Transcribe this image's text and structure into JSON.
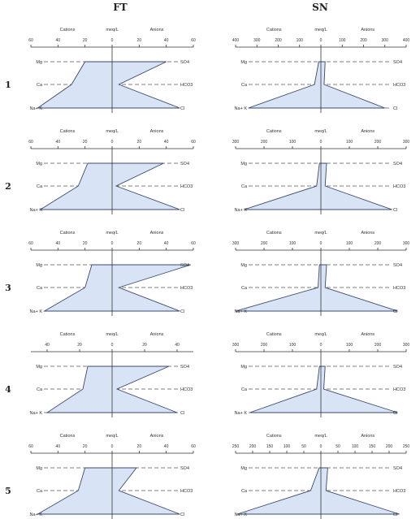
{
  "columns": [
    "FT",
    "SN"
  ],
  "ion_labels": {
    "left": [
      "Mg",
      "Ca",
      "Na+ K"
    ],
    "right": [
      "SO4",
      "HCO3",
      "Cl"
    ]
  },
  "axis_headers": [
    "Cations",
    "meq/L",
    "Anions"
  ],
  "chart_data": [
    {
      "type": "stiff",
      "column": "FT",
      "row_label": "1",
      "ticks": [
        60,
        40,
        20,
        0,
        20,
        40,
        60
      ],
      "xlim": [
        -60,
        60
      ],
      "cations": {
        "Mg": 20,
        "Ca": 30,
        "Na+K": 55
      },
      "anions": {
        "SO4": 40,
        "HCO3": 5,
        "Cl": 50
      }
    },
    {
      "type": "stiff",
      "column": "SN",
      "row_label": "1",
      "ticks": [
        400,
        300,
        200,
        100,
        0,
        100,
        200,
        300,
        400
      ],
      "xlim": [
        -400,
        400
      ],
      "cations": {
        "Mg": 10,
        "Ca": 30,
        "Na+K": 340
      },
      "anions": {
        "SO4": 20,
        "HCO3": 15,
        "Cl": 300
      }
    },
    {
      "type": "stiff",
      "column": "FT",
      "row_label": "2",
      "ticks": [
        60,
        40,
        20,
        0,
        20,
        40,
        60
      ],
      "xlim": [
        -60,
        60
      ],
      "cations": {
        "Mg": 18,
        "Ca": 25,
        "Na+K": 53
      },
      "anions": {
        "SO4": 38,
        "HCO3": 3,
        "Cl": 50
      }
    },
    {
      "type": "stiff",
      "column": "SN",
      "row_label": "2",
      "ticks": [
        300,
        200,
        100,
        0,
        100,
        200,
        300
      ],
      "xlim": [
        -300,
        300
      ],
      "cations": {
        "Mg": 5,
        "Ca": 15,
        "Na+K": 270
      },
      "anions": {
        "SO4": 20,
        "HCO3": 15,
        "Cl": 250
      }
    },
    {
      "type": "stiff",
      "column": "FT",
      "row_label": "3",
      "ticks": [
        60,
        40,
        20,
        0,
        20,
        40,
        60
      ],
      "xlim": [
        -60,
        60
      ],
      "cations": {
        "Mg": 15,
        "Ca": 20,
        "Na+K": 50
      },
      "anions": {
        "SO4": 58,
        "HCO3": 5,
        "Cl": 50
      }
    },
    {
      "type": "stiff",
      "column": "SN",
      "row_label": "3",
      "ticks": [
        300,
        200,
        100,
        0,
        100,
        200,
        300
      ],
      "xlim": [
        -300,
        300
      ],
      "cations": {
        "Mg": 5,
        "Ca": 10,
        "Na+K": 300
      },
      "anions": {
        "SO4": 20,
        "HCO3": 15,
        "Cl": 270
      }
    },
    {
      "type": "stiff",
      "column": "FT",
      "row_label": "4",
      "ticks": [
        40,
        20,
        0,
        20,
        40
      ],
      "xlim": [
        -50,
        50
      ],
      "cations": {
        "Mg": 15,
        "Ca": 18,
        "Na+K": 40
      },
      "anions": {
        "SO4": 35,
        "HCO3": 3,
        "Cl": 40
      }
    },
    {
      "type": "stiff",
      "column": "SN",
      "row_label": "4",
      "ticks": [
        300,
        200,
        100,
        0,
        100,
        200,
        300
      ],
      "xlim": [
        -300,
        300
      ],
      "cations": {
        "Mg": 5,
        "Ca": 15,
        "Na+K": 250
      },
      "anions": {
        "SO4": 15,
        "HCO3": 10,
        "Cl": 270
      }
    },
    {
      "type": "stiff",
      "column": "FT",
      "row_label": "5",
      "ticks": [
        60,
        40,
        20,
        0,
        20,
        40,
        60
      ],
      "xlim": [
        -60,
        60
      ],
      "cations": {
        "Mg": 20,
        "Ca": 25,
        "Na+K": 55
      },
      "anions": {
        "SO4": 18,
        "HCO3": 5,
        "Cl": 50
      }
    },
    {
      "type": "stiff",
      "column": "SN",
      "row_label": "5",
      "ticks": [
        250,
        200,
        150,
        100,
        50,
        0,
        50,
        100,
        150,
        200,
        250
      ],
      "xlim": [
        -250,
        250
      ],
      "cations": {
        "Mg": 5,
        "Ca": 30,
        "Na+K": 245
      },
      "anions": {
        "SO4": 20,
        "HCO3": 15,
        "Cl": 230
      }
    }
  ]
}
